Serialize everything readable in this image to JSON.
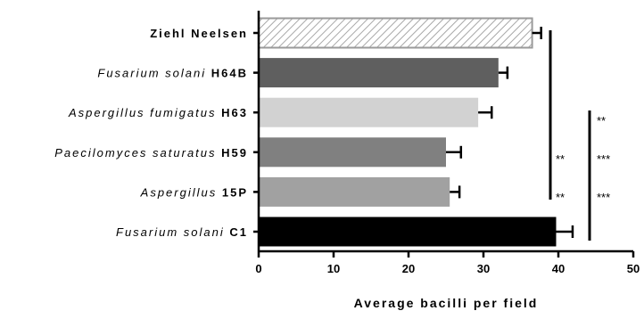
{
  "chart_data": {
    "type": "bar",
    "orientation": "horizontal",
    "categories": [
      {
        "italic": "",
        "bold": "Ziehl Neelsen"
      },
      {
        "italic": "Fusarium solani ",
        "bold": "H64B"
      },
      {
        "italic": "Aspergillus fumigatus ",
        "bold": "H63"
      },
      {
        "italic": "Paecilomyces saturatus ",
        "bold": "H59"
      },
      {
        "italic": "Aspergillus ",
        "bold": "15P"
      },
      {
        "italic": "Fusarium solani ",
        "bold": "C1"
      }
    ],
    "values": [
      36.5,
      32,
      29.3,
      25,
      25.5,
      39.7
    ],
    "errors": [
      1.2,
      1.2,
      1.8,
      2.0,
      1.3,
      2.2
    ],
    "colors": [
      "hatch",
      "#5f5f5f",
      "#d2d2d2",
      "#808080",
      "#a1a1a1",
      "#000000"
    ],
    "xlabel": "Average bacilli per field",
    "xlim": [
      0,
      50
    ],
    "xticks": [
      0,
      10,
      20,
      30,
      40,
      50
    ],
    "significance": {
      "bracket1": {
        "labels": [
          "**",
          "**"
        ],
        "spans_categories": [
          0,
          4
        ]
      },
      "bracket2": {
        "labels": [
          "**",
          "***",
          "***"
        ],
        "spans_categories": [
          2,
          5
        ]
      }
    }
  }
}
